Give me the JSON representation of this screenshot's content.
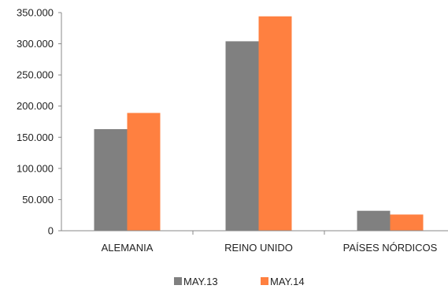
{
  "chart_data": {
    "type": "bar",
    "categories": [
      "ALEMANIA",
      "REINO UNIDO",
      "PAÍSES NÓRDICOS"
    ],
    "series": [
      {
        "name": "MAY.13",
        "color": "#808080",
        "values": [
          163000,
          304000,
          32000
        ]
      },
      {
        "name": "MAY.14",
        "color": "#FF8040",
        "values": [
          189000,
          344000,
          26000
        ]
      }
    ],
    "ylim": [
      0,
      350000
    ],
    "yticks": [
      0,
      50000,
      100000,
      150000,
      200000,
      250000,
      300000,
      350000
    ],
    "ytick_labels": [
      "0",
      "50.000",
      "100.000",
      "150.000",
      "200.000",
      "250.000",
      "300.000",
      "350.000"
    ],
    "grid": false,
    "legend_position": "bottom"
  }
}
